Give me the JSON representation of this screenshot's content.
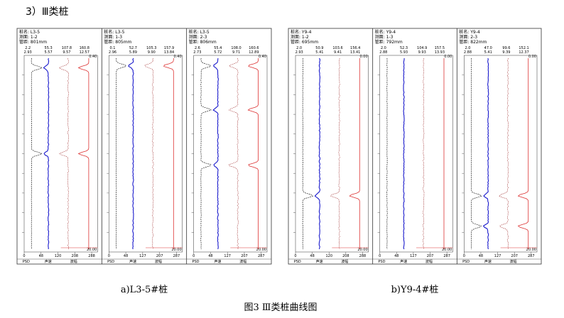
{
  "heading": "3）Ⅲ类桩",
  "footer": [
    "PSD",
    "声速",
    "波幅"
  ],
  "groups": [
    {
      "caption": "a)L3-5#桩",
      "panels": [
        {
          "lines": [
            "桩名: L3-5",
            "测面: 1-2",
            "管距: 801mm"
          ],
          "scale_top": [
            "2.2",
            "55.3",
            "107.8",
            "160.8"
          ],
          "scale_bottom": [
            "2.93",
            "5.57",
            "9.57",
            "12.57"
          ],
          "top_right": "0.40",
          "bottom_right": "20.00",
          "axis_ticks": [
            "0",
            "48",
            "120",
            "208",
            "288"
          ]
        },
        {
          "lines": [
            "桩名: L3-5",
            "测面: 1-3",
            "管距: 805mm"
          ],
          "scale_top": [
            "0.1",
            "52.7",
            "105.3",
            "157.9"
          ],
          "scale_bottom": [
            "2.96",
            "5.89",
            "9.90",
            "13.84"
          ],
          "top_right": "0.40",
          "bottom_right": "20.00",
          "axis_ticks": [
            "0",
            "48",
            "127",
            "207",
            "287"
          ]
        },
        {
          "lines": [
            "桩名: L3-5",
            "测面: 2-3",
            "管距: 806mm"
          ],
          "scale_top": [
            "2.6",
            "55.4",
            "108.0",
            "160.6"
          ],
          "scale_bottom": [
            "2.73",
            "5.72",
            "9.71",
            "12.89"
          ],
          "top_right": "0.40",
          "bottom_right": "20.00",
          "axis_ticks": [
            "0",
            "48",
            "127",
            "207",
            "287"
          ]
        }
      ]
    },
    {
      "caption": "b)Y9-4#桩",
      "panels": [
        {
          "lines": [
            "桩名: Y9-4",
            "测面: 1-2",
            "管距: 695mm"
          ],
          "scale_top": [
            "2.0",
            "50.9",
            "103.6",
            "156.4"
          ],
          "scale_bottom": [
            "2.93",
            "5.41",
            "9.41",
            "13.41"
          ],
          "top_right": "0.00",
          "bottom_right": "20.00",
          "axis_ticks": [
            "0",
            "48",
            "120",
            "208",
            "288"
          ]
        },
        {
          "lines": [
            "桩名: Y9-4",
            "测面: 1-3",
            "管距: 792mm"
          ],
          "scale_top": [
            "2.0",
            "52.3",
            "104.9",
            "157.5"
          ],
          "scale_bottom": [
            "2.88",
            "5.93",
            "9.93",
            "13.93"
          ],
          "top_right": "0.00",
          "bottom_right": "20.00",
          "axis_ticks": [
            "0",
            "48",
            "127",
            "207",
            "287"
          ]
        },
        {
          "lines": [
            "桩名: Y9-4",
            "测面: 2-3",
            "管距: 822mm"
          ],
          "scale_top": [
            "2.0",
            "47.0",
            "99.6",
            "152.1"
          ],
          "scale_bottom": [
            "2.88",
            "5.41",
            "9.39",
            "12.37"
          ],
          "top_right": "0.00",
          "bottom_right": "20.00",
          "axis_ticks": [
            "0",
            "48",
            "127",
            "207",
            "287"
          ]
        }
      ]
    }
  ],
  "figure_caption": "图3 Ⅲ类桩曲线图"
}
